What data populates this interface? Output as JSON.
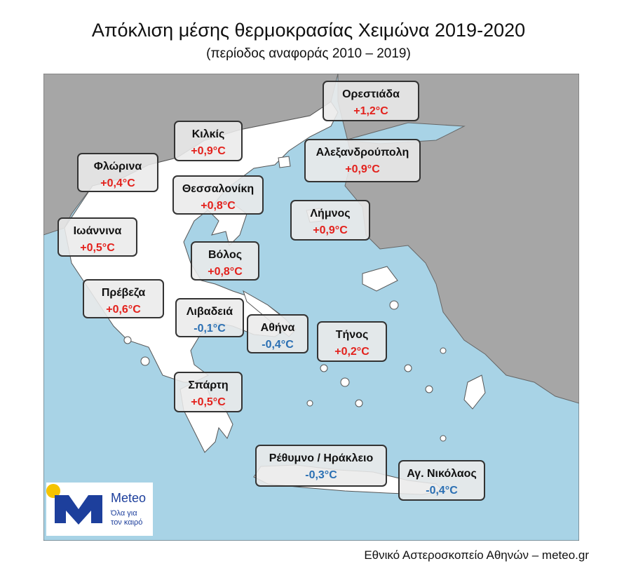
{
  "header": {
    "title": "Απόκλιση μέσης θερμοκρασίας Χειμώνα 2019-2020",
    "subtitle": "(περίοδος αναφοράς 2010 – 2019)"
  },
  "stations": [
    {
      "name": "Ορεστιάδα",
      "value": "+1,2°C",
      "color": "#e3211c"
    },
    {
      "name": "Κιλκίς",
      "value": "+0,9°C",
      "color": "#e3211c"
    },
    {
      "name": "Φλώρινα",
      "value": "+0,4°C",
      "color": "#e3211c"
    },
    {
      "name": "Αλεξανδρούπολη",
      "value": "+0,9°C",
      "color": "#e3211c"
    },
    {
      "name": "Θεσσαλονίκη",
      "value": "+0,8°C",
      "color": "#e3211c"
    },
    {
      "name": "Λήμνος",
      "value": "+0,9°C",
      "color": "#e3211c"
    },
    {
      "name": "Ιωάννινα",
      "value": "+0,5°C",
      "color": "#e3211c"
    },
    {
      "name": "Βόλος",
      "value": "+0,8°C",
      "color": "#e3211c"
    },
    {
      "name": "Πρέβεζα",
      "value": "+0,6°C",
      "color": "#e3211c"
    },
    {
      "name": "Λιβαδειά",
      "value": "-0,1°C",
      "color": "#2a6fb3"
    },
    {
      "name": "Αθήνα",
      "value": "-0,4°C",
      "color": "#2a6fb3"
    },
    {
      "name": "Τήνος",
      "value": "+0,2°C",
      "color": "#e3211c"
    },
    {
      "name": "Σπάρτη",
      "value": "+0,5°C",
      "color": "#e3211c"
    },
    {
      "name": "Ρέθυμνο / Ηράκλειο",
      "value": "-0,3°C",
      "color": "#2a6fb3"
    },
    {
      "name": "Αγ. Νικόλαος",
      "value": "-0,4°C",
      "color": "#2a6fb3"
    }
  ],
  "logo": {
    "brand": "Meteo",
    "tagline_1": "Όλα για",
    "tagline_2": "τον καιρό"
  },
  "footer": {
    "credit": "Εθνικό Αστεροσκοπείο Αθηνών – meteo.gr"
  }
}
